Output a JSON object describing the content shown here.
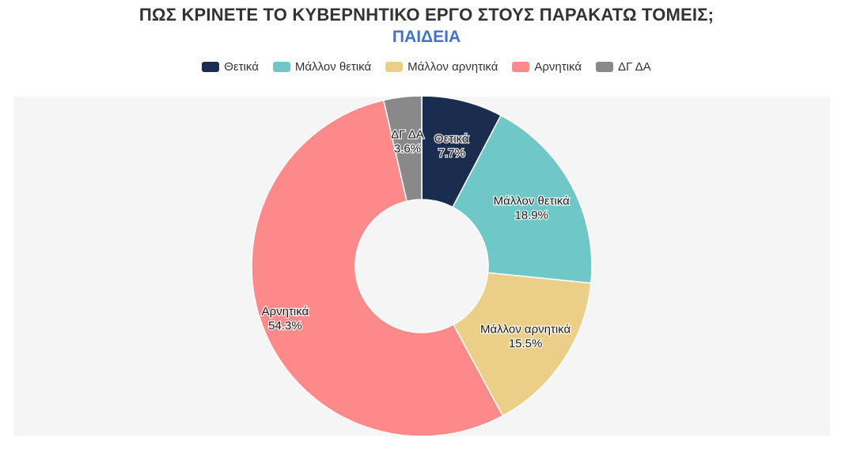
{
  "chart_data": {
    "type": "pie",
    "donut": true,
    "title": "ΠΩΣ ΚΡΙΝΕΤΕ ΤΟ ΚΥΒΕΡΝΗΤΙΚΟ ΕΡΓΟ ΣΤΟΥΣ ΠΑΡΑΚΑΤΩ ΤΟΜΕΙΣ;",
    "subtitle": "ΠΑΙΔΕΙΑ",
    "legend_position": "top",
    "slices": [
      {
        "label": "Θετικά",
        "value": 7.7,
        "display": "7.7%",
        "color": "#1b2d4f"
      },
      {
        "label": "Μάλλον θετικά",
        "value": 18.9,
        "display": "18.9%",
        "color": "#6fc7c7"
      },
      {
        "label": "Μάλλον αρνητικά",
        "value": 15.5,
        "display": "15.5%",
        "color": "#ebcf88"
      },
      {
        "label": "Αρνητικά",
        "value": 54.3,
        "display": "54.3%",
        "color": "#fd8a8a"
      },
      {
        "label": "ΔΓ ΔΑ",
        "value": 3.6,
        "display": "3.6%",
        "color": "#898989"
      }
    ]
  },
  "colors": {
    "title": "#333333",
    "subtitle": "#4472c4",
    "plot_background": "#f5f5f5"
  }
}
